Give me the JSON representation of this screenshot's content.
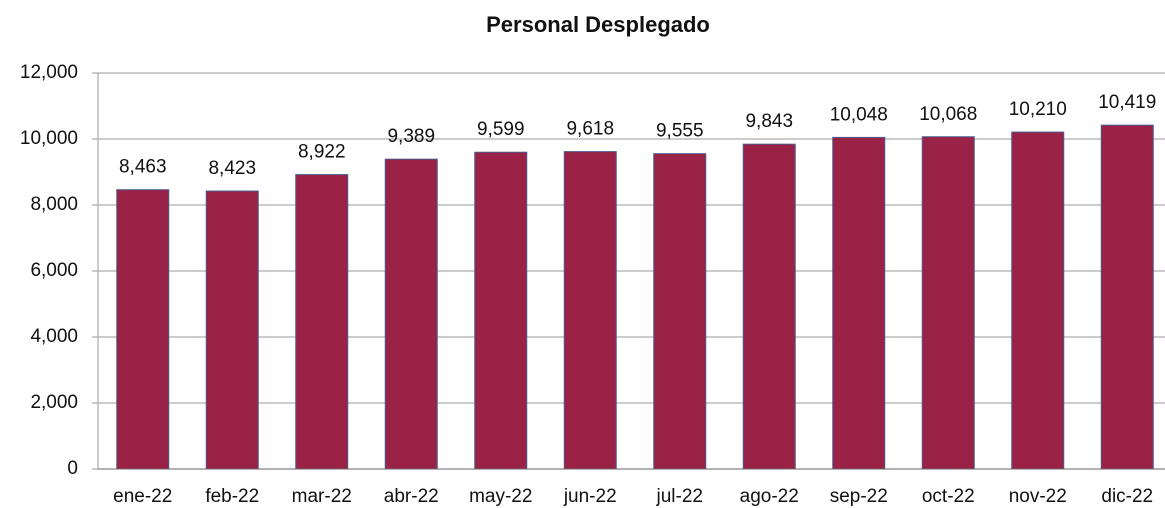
{
  "chart_data": {
    "type": "bar",
    "title": "Personal Desplegado",
    "categories": [
      "ene-22",
      "feb-22",
      "mar-22",
      "abr-22",
      "may-22",
      "jun-22",
      "jul-22",
      "ago-22",
      "sep-22",
      "oct-22",
      "nov-22",
      "dic-22"
    ],
    "values": [
      8463,
      8423,
      8922,
      9389,
      9599,
      9618,
      9555,
      9843,
      10048,
      10068,
      10210,
      10419
    ],
    "value_labels": [
      "8,463",
      "8,423",
      "8,922",
      "9,389",
      "9,599",
      "9,618",
      "9,555",
      "9,843",
      "10,048",
      "10,068",
      "10,210",
      "10,419"
    ],
    "color": "#9b2247",
    "ylim": [
      0,
      12000
    ],
    "yticks": [
      0,
      {
        "value": 2000,
        "label": "2,000"
      },
      {
        "value": 4000,
        "label": "4,000"
      },
      {
        "value": 6000,
        "label": "6,000"
      },
      {
        "value": 8000,
        "label": "8,000"
      },
      {
        "value": 10000,
        "label": "10,000"
      },
      {
        "value": 12000,
        "label": "12,000"
      }
    ],
    "grid": true
  }
}
